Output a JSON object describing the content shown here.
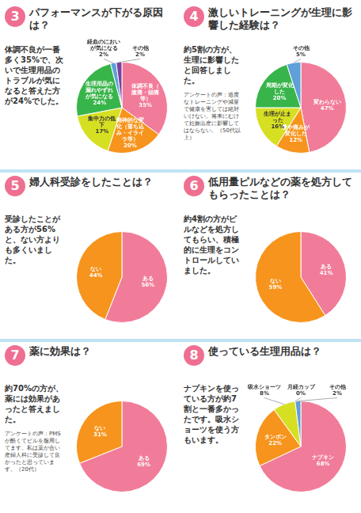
{
  "chart_data": [
    {
      "type": "pie",
      "panel": "3",
      "title": "パフォーマンスが下がる原因は？",
      "categories": [
        "体調不良（腹痛・頭痛等）",
        "精神的な変化（落ち込み・イライラ等）",
        "集中力の低下",
        "生理用品の漏れやずれが気になる",
        "経血のにおいが気になる",
        "その他"
      ],
      "values": [
        35,
        20,
        17,
        24,
        2,
        2
      ],
      "value_labels": [
        "35%",
        "20%",
        "17%",
        "24%",
        "2%",
        "2%"
      ],
      "colors": [
        "#f17c99",
        "#f7941d",
        "#d7df23",
        "#38b54a",
        "#5ea0d8",
        "#7b3f9e"
      ],
      "data_labels": true,
      "annotations": [
        "体調不良が一番多く35%で、次いで生理用品のトラブルが気になると答えた方が24%でした。"
      ]
    },
    {
      "type": "pie",
      "panel": "4",
      "title": "激しいトレーニングが生理に影響した経験は？",
      "categories": [
        "変わらない",
        "量や痛みが変化した",
        "生理が止まった",
        "周期が変化した",
        "その他"
      ],
      "values": [
        47,
        12,
        16,
        20,
        5
      ],
      "value_labels": [
        "47%",
        "12%",
        "16%",
        "20%",
        "5%"
      ],
      "colors": [
        "#f17c99",
        "#f7941d",
        "#d7df23",
        "#38b54a",
        "#5ea0d8"
      ],
      "data_labels": true,
      "annotations": [
        "約5割の方が、生理に影響したと回答しました。",
        "アンケートの声：過度なトレーニングや減量で健康を害しては絶対いけない。将来にむけて妊娠出産に影響してはならない。（50代以上）"
      ]
    },
    {
      "type": "pie",
      "panel": "5",
      "title": "婦人科受診をしたことは？",
      "categories": [
        "ある",
        "ない"
      ],
      "values": [
        56,
        44
      ],
      "value_labels": [
        "56%",
        "44%"
      ],
      "colors": [
        "#f17c99",
        "#f7941d"
      ],
      "data_labels": true,
      "annotations": [
        "受診したことがある方が56%と、ない方よりも多くいました。"
      ]
    },
    {
      "type": "pie",
      "panel": "6",
      "title": "低用量ピルなどの薬を処方してもらったことは？",
      "categories": [
        "ある",
        "ない"
      ],
      "values": [
        41,
        59
      ],
      "value_labels": [
        "41%",
        "59%"
      ],
      "colors": [
        "#f17c99",
        "#f7941d"
      ],
      "data_labels": true,
      "annotations": [
        "約4割の方がピルなどを処方してもらい、積極的に生理をコントロールしていました。"
      ]
    },
    {
      "type": "pie",
      "panel": "7",
      "title": "薬に効果は？",
      "categories": [
        "ある",
        "ない"
      ],
      "values": [
        69,
        31
      ],
      "value_labels": [
        "69%",
        "31%"
      ],
      "colors": [
        "#f17c99",
        "#f7941d"
      ],
      "data_labels": true,
      "annotations": [
        "約70%の方が、薬には効果があったと答えました。",
        "アンケートの声：PMSが酷くてピルを服用してます。私は薬が合い産婦人科に受診して良かったと思っています。（20代）"
      ]
    },
    {
      "type": "pie",
      "panel": "8",
      "title": "使っている生理用品は？",
      "categories": [
        "ナプキン",
        "タンポン",
        "吸水ショーツ",
        "月経カップ",
        "その他"
      ],
      "values": [
        68,
        22,
        8,
        0,
        2
      ],
      "value_labels": [
        "68%",
        "22%",
        "8%",
        "0%",
        "2%"
      ],
      "colors": [
        "#f17c99",
        "#f7941d",
        "#d7df23",
        "#38b54a",
        "#5ea0d8"
      ],
      "data_labels": true,
      "annotations": [
        "ナプキンを使っている方が約7割と一番多かったです。吸水ショーツを使う方もいます。"
      ]
    }
  ]
}
